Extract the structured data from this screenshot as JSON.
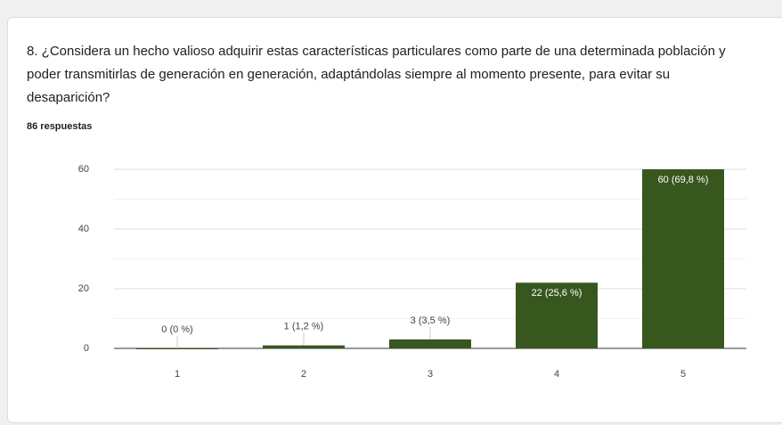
{
  "chart_data": {
    "type": "bar",
    "title": "8. ¿Considera un hecho valioso adquirir estas características particulares como parte de una determinada población y poder transmitirlas de generación en generación, adaptándolas siempre al momento presente, para evitar su desaparición?",
    "subtitle": "86 respuestas",
    "categories": [
      "1",
      "2",
      "3",
      "4",
      "5"
    ],
    "values": [
      0,
      1,
      3,
      22,
      60
    ],
    "value_labels": [
      "0 (0 %)",
      "1 (1,2 %)",
      "3 (3,5 %)",
      "22 (25,6 %)",
      "60 (69,8 %)"
    ],
    "color": "#38571f",
    "ylim": [
      0,
      60
    ],
    "yticks": [
      0,
      20,
      40,
      60
    ],
    "minor_yticks": [
      10,
      30,
      50
    ],
    "grid": true
  }
}
